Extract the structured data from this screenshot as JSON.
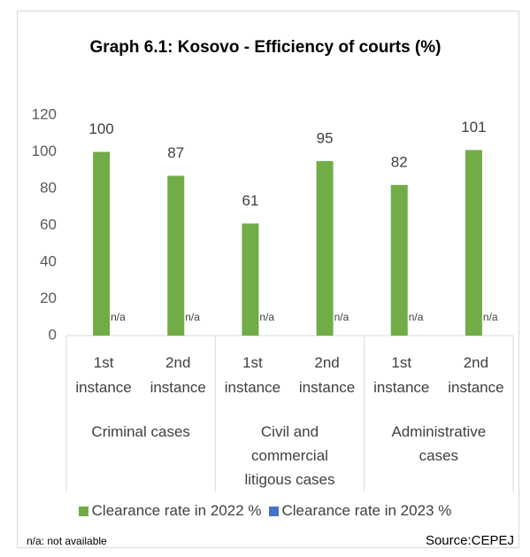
{
  "chart_data": {
    "type": "bar",
    "title": "Graph 6.1: Kosovo - Efficiency of courts (%)",
    "categories": [
      "1st instance",
      "2nd instance",
      "1st instance",
      "2nd instance",
      "1st instance",
      "2nd instance"
    ],
    "group_categories": [
      "Criminal cases",
      "Civil and commercial litigous cases",
      "Administrative cases"
    ],
    "series": [
      {
        "name": "Clearance rate in 2022 %",
        "color": "#70ad47",
        "values": [
          100,
          87,
          61,
          95,
          82,
          101
        ]
      },
      {
        "name": "Clearance rate in 2023 %",
        "color": "#4472c4",
        "values": [
          null,
          null,
          null,
          null,
          null,
          null
        ],
        "value_labels": [
          "n/a",
          "n/a",
          "n/a",
          "n/a",
          "n/a",
          "n/a"
        ]
      }
    ],
    "ylim": [
      0,
      120
    ],
    "yticks": [
      0,
      20,
      40,
      60,
      80,
      100,
      120
    ],
    "grid": false,
    "legend": "bottom",
    "footnote": "n/a: not available",
    "source": "Source:CEPEJ"
  }
}
